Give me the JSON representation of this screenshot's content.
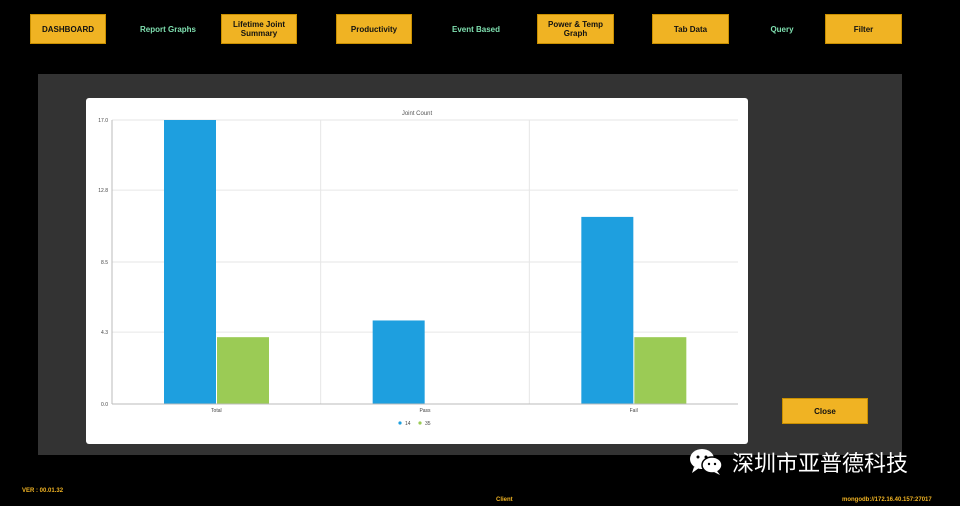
{
  "nav": {
    "dashboard": "DASHBOARD",
    "report_graphs": "Report Graphs",
    "lifetime_joint_summary": "Lifetime Joint Summary",
    "productivity": "Productivity",
    "event_based": "Event Based",
    "power_temp_graph": "Power & Temp Graph",
    "tab_data": "Tab Data",
    "query": "Query",
    "filter": "Filter"
  },
  "modal": {
    "close_label": "Close"
  },
  "footer": {
    "version": "VER : 00.01.32",
    "client": "Client",
    "db": "mongodb://172.16.40.157:27017"
  },
  "watermark": {
    "text": "深圳市亚普德科技",
    "icon": "wechat-icon"
  },
  "colors": {
    "nav_button": "#f0b323",
    "nav_link": "#7fe0b0",
    "series_14": "#1e9fdf",
    "series_35": "#9bcb55",
    "footer_text": "#f0b323"
  },
  "chart_data": {
    "type": "bar",
    "title": "Joint Count",
    "categories": [
      "Total",
      "Pass",
      "Fail"
    ],
    "series": [
      {
        "name": "14",
        "values": [
          17,
          5,
          11.2
        ]
      },
      {
        "name": "35",
        "values": [
          4,
          0,
          4
        ]
      }
    ],
    "yticks": [
      "0.0",
      "4.3",
      "8.5",
      "12.8",
      "17.0"
    ],
    "ylim": [
      0,
      17
    ],
    "grid": true,
    "legend": "bottom-center",
    "xlabel": "",
    "ylabel": ""
  }
}
